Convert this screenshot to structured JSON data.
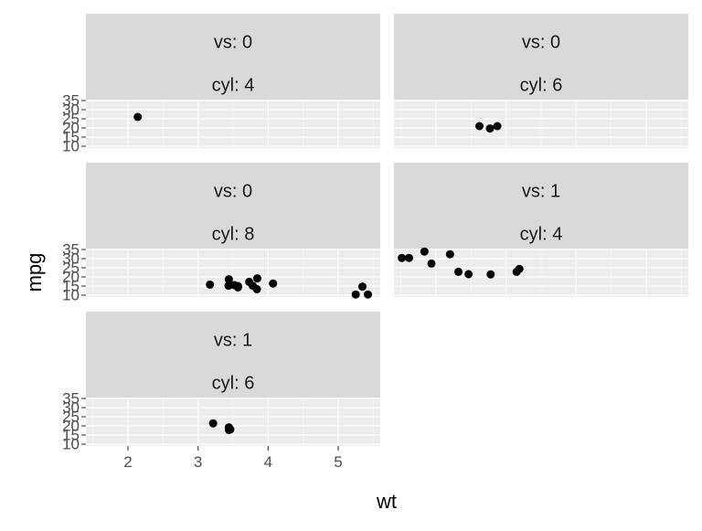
{
  "chart_data": {
    "type": "scatter",
    "title": "",
    "xlabel": "wt",
    "ylabel": "mpg",
    "xlim": [
      1.4,
      5.6
    ],
    "ylim": [
      9,
      35.5
    ],
    "xticks": [
      2,
      3,
      4,
      5
    ],
    "yticks": [
      10,
      15,
      20,
      25,
      30,
      35
    ],
    "grid": true,
    "strip_fill": "#d9d9d9",
    "panel_fill": "#ebebeb",
    "grid_color": "#ffffff",
    "point_color": "#000000",
    "panels": [
      {
        "strip": [
          "vs: 0",
          "cyl: 4"
        ],
        "points": [
          [
            2.14,
            26.0
          ]
        ]
      },
      {
        "strip": [
          "vs: 0",
          "cyl: 6"
        ],
        "points": [
          [
            2.62,
            21.0
          ],
          [
            2.875,
            21.0
          ],
          [
            2.77,
            19.7
          ]
        ]
      },
      {
        "strip": [
          "vs: 0",
          "cyl: 8"
        ],
        "points": [
          [
            3.44,
            18.7
          ],
          [
            3.57,
            14.3
          ],
          [
            4.07,
            16.4
          ],
          [
            3.73,
            17.3
          ],
          [
            3.78,
            15.2
          ],
          [
            5.25,
            10.4
          ],
          [
            5.424,
            10.4
          ],
          [
            5.345,
            14.7
          ],
          [
            3.52,
            15.5
          ],
          [
            3.435,
            15.2
          ],
          [
            3.84,
            13.3
          ],
          [
            3.845,
            19.2
          ],
          [
            3.17,
            15.8
          ],
          [
            3.57,
            15.0
          ]
        ]
      },
      {
        "strip": [
          "vs: 1",
          "cyl: 4"
        ],
        "points": [
          [
            2.32,
            22.8
          ],
          [
            3.19,
            24.4
          ],
          [
            3.15,
            22.8
          ],
          [
            2.2,
            32.4
          ],
          [
            1.615,
            30.4
          ],
          [
            1.835,
            33.9
          ],
          [
            2.465,
            21.5
          ],
          [
            1.935,
            27.3
          ],
          [
            1.513,
            30.4
          ],
          [
            2.78,
            21.4
          ]
        ]
      },
      {
        "strip": [
          "vs: 1",
          "cyl: 6"
        ],
        "points": [
          [
            3.215,
            21.4
          ],
          [
            3.46,
            18.1
          ],
          [
            3.44,
            19.2
          ],
          [
            3.44,
            17.8
          ]
        ]
      }
    ]
  }
}
